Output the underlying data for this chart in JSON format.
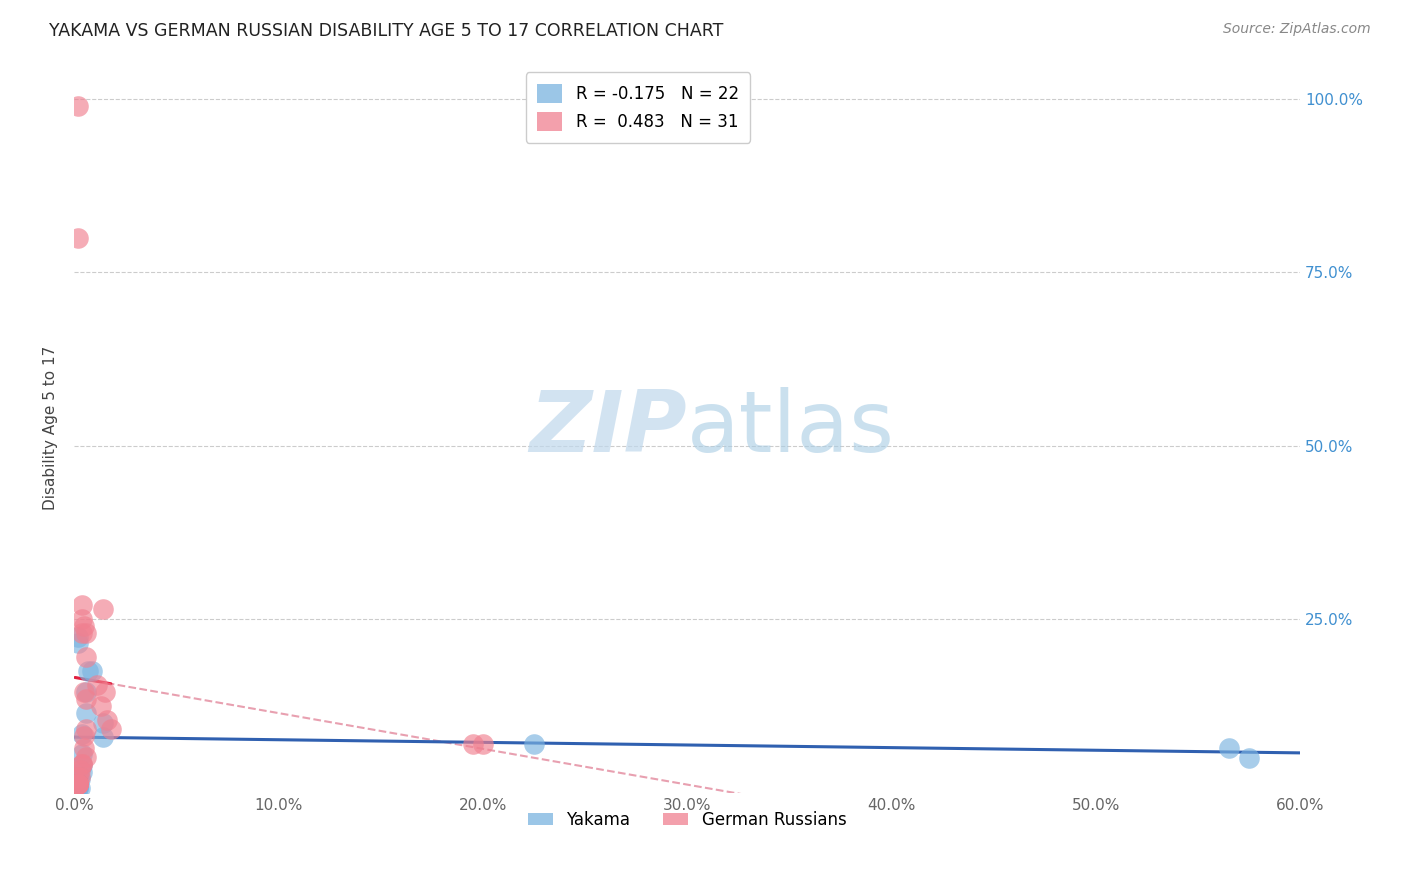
{
  "title": "YAKAMA VS GERMAN RUSSIAN DISABILITY AGE 5 TO 17 CORRELATION CHART",
  "source": "Source: ZipAtlas.com",
  "ylabel_label": "Disability Age 5 to 17",
  "xlim": [
    0.0,
    0.6
  ],
  "ylim": [
    0.0,
    1.05
  ],
  "xtick_labels": [
    "0.0%",
    "10.0%",
    "20.0%",
    "30.0%",
    "40.0%",
    "50.0%",
    "60.0%"
  ],
  "xtick_values": [
    0.0,
    0.1,
    0.2,
    0.3,
    0.4,
    0.5,
    0.6
  ],
  "ytick_labels": [
    "25.0%",
    "50.0%",
    "75.0%",
    "100.0%"
  ],
  "ytick_values": [
    0.25,
    0.5,
    0.75,
    1.0
  ],
  "yakama_points": [
    [
      0.002,
      0.215
    ],
    [
      0.002,
      0.225
    ],
    [
      0.006,
      0.145
    ],
    [
      0.007,
      0.175
    ],
    [
      0.009,
      0.175
    ],
    [
      0.006,
      0.115
    ],
    [
      0.004,
      0.085
    ],
    [
      0.004,
      0.055
    ],
    [
      0.004,
      0.04
    ],
    [
      0.004,
      0.03
    ],
    [
      0.003,
      0.02
    ],
    [
      0.001,
      0.02
    ],
    [
      0.002,
      0.01
    ],
    [
      0.002,
      0.01
    ],
    [
      0.002,
      0.007
    ],
    [
      0.002,
      0.007
    ],
    [
      0.003,
      0.007
    ],
    [
      0.014,
      0.1
    ],
    [
      0.014,
      0.08
    ],
    [
      0.225,
      0.07
    ],
    [
      0.565,
      0.065
    ],
    [
      0.575,
      0.05
    ]
  ],
  "german_russian_points": [
    [
      0.002,
      0.99
    ],
    [
      0.002,
      0.8
    ],
    [
      0.004,
      0.27
    ],
    [
      0.004,
      0.25
    ],
    [
      0.005,
      0.24
    ],
    [
      0.004,
      0.23
    ],
    [
      0.006,
      0.23
    ],
    [
      0.006,
      0.195
    ],
    [
      0.005,
      0.145
    ],
    [
      0.006,
      0.135
    ],
    [
      0.006,
      0.092
    ],
    [
      0.005,
      0.082
    ],
    [
      0.005,
      0.065
    ],
    [
      0.006,
      0.052
    ],
    [
      0.004,
      0.042
    ],
    [
      0.004,
      0.042
    ],
    [
      0.003,
      0.032
    ],
    [
      0.003,
      0.022
    ],
    [
      0.002,
      0.022
    ],
    [
      0.002,
      0.012
    ],
    [
      0.002,
      0.012
    ],
    [
      0.002,
      0.012
    ],
    [
      0.002,
      0.012
    ],
    [
      0.002,
      0.012
    ],
    [
      0.011,
      0.155
    ],
    [
      0.013,
      0.125
    ],
    [
      0.014,
      0.265
    ],
    [
      0.016,
      0.105
    ],
    [
      0.018,
      0.092
    ],
    [
      0.015,
      0.145
    ],
    [
      0.195,
      0.07
    ],
    [
      0.2,
      0.07
    ]
  ],
  "yakama_color": "#7ab3e0",
  "german_russian_color": "#f08090",
  "yakama_trend_color": "#3060b0",
  "german_russian_trend_solid_color": "#e02040",
  "german_russian_trend_dash_color": "#e8a0b0",
  "watermark_zip_color": "#c8ddf0",
  "watermark_atlas_color": "#a0c8e8"
}
